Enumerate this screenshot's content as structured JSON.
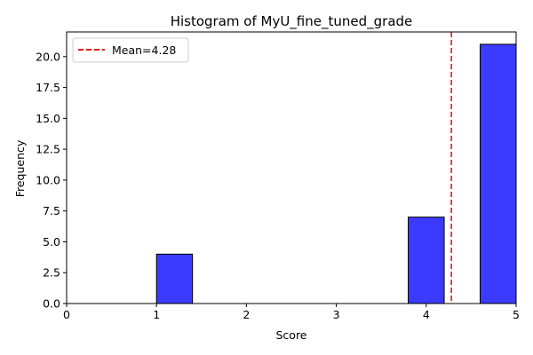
{
  "chart_data": {
    "type": "bar",
    "title": "Histogram of MyU_fine_tuned_grade",
    "xlabel": "Score",
    "ylabel": "Frequency",
    "xlim": [
      0,
      5
    ],
    "ylim": [
      0,
      22
    ],
    "xticks": [
      "0",
      "1",
      "2",
      "3",
      "4",
      "5"
    ],
    "yticks": [
      "0.0",
      "2.5",
      "5.0",
      "7.5",
      "10.0",
      "12.5",
      "15.0",
      "17.5",
      "20.0"
    ],
    "bins": [
      {
        "x0": 1.0,
        "x1": 1.4,
        "count": 4
      },
      {
        "x0": 1.4,
        "x1": 1.8,
        "count": 0
      },
      {
        "x0": 1.8,
        "x1": 2.2,
        "count": 0
      },
      {
        "x0": 2.2,
        "x1": 2.6,
        "count": 0
      },
      {
        "x0": 2.6,
        "x1": 3.0,
        "count": 0
      },
      {
        "x0": 3.0,
        "x1": 3.4,
        "count": 0
      },
      {
        "x0": 3.4,
        "x1": 3.8,
        "count": 0
      },
      {
        "x0": 3.8,
        "x1": 4.2,
        "count": 7
      },
      {
        "x0": 4.2,
        "x1": 4.6,
        "count": 0
      },
      {
        "x0": 4.6,
        "x1": 5.0,
        "count": 21
      }
    ],
    "mean_line": {
      "value": 4.28,
      "label": "Mean=4.28",
      "color": "#e31a1c"
    },
    "bar_color": "#3b3bff",
    "edge_color": "#000000",
    "grid": false,
    "legend_position": "top-left"
  }
}
